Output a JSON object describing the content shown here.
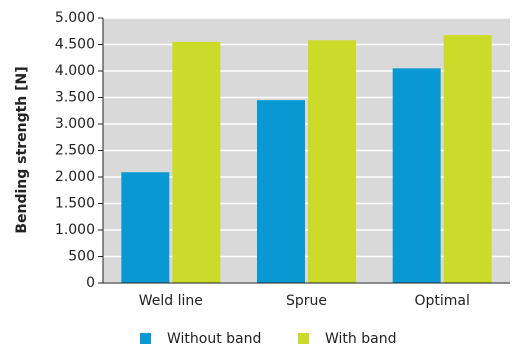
{
  "chart_data": {
    "type": "bar",
    "y_label": "Bending strength [N]",
    "categories": [
      "Weld line",
      "Sprue",
      "Optimal"
    ],
    "series": [
      {
        "name": "Without band",
        "color": "#0899d3",
        "values": [
          2090,
          3450,
          4050
        ]
      },
      {
        "name": "With band",
        "color": "#cbdb2a",
        "values": [
          4550,
          4580,
          4680
        ]
      }
    ],
    "ylim": [
      0,
      5000
    ],
    "yticks": [
      0,
      500,
      {
        "value": 1000,
        "label": "1.000"
      },
      {
        "value": 1500,
        "label": "1.500"
      },
      {
        "value": 2000,
        "label": "2.000"
      },
      {
        "value": 2500,
        "label": "2.500"
      },
      {
        "value": 3000,
        "label": "3.000"
      },
      {
        "value": 3500,
        "label": "3.500"
      },
      {
        "value": 4000,
        "label": "4.000"
      },
      {
        "value": 4500,
        "label": "4.500"
      },
      {
        "value": 5000,
        "label": "5.000"
      }
    ],
    "grid": true,
    "legend": "bottom"
  }
}
